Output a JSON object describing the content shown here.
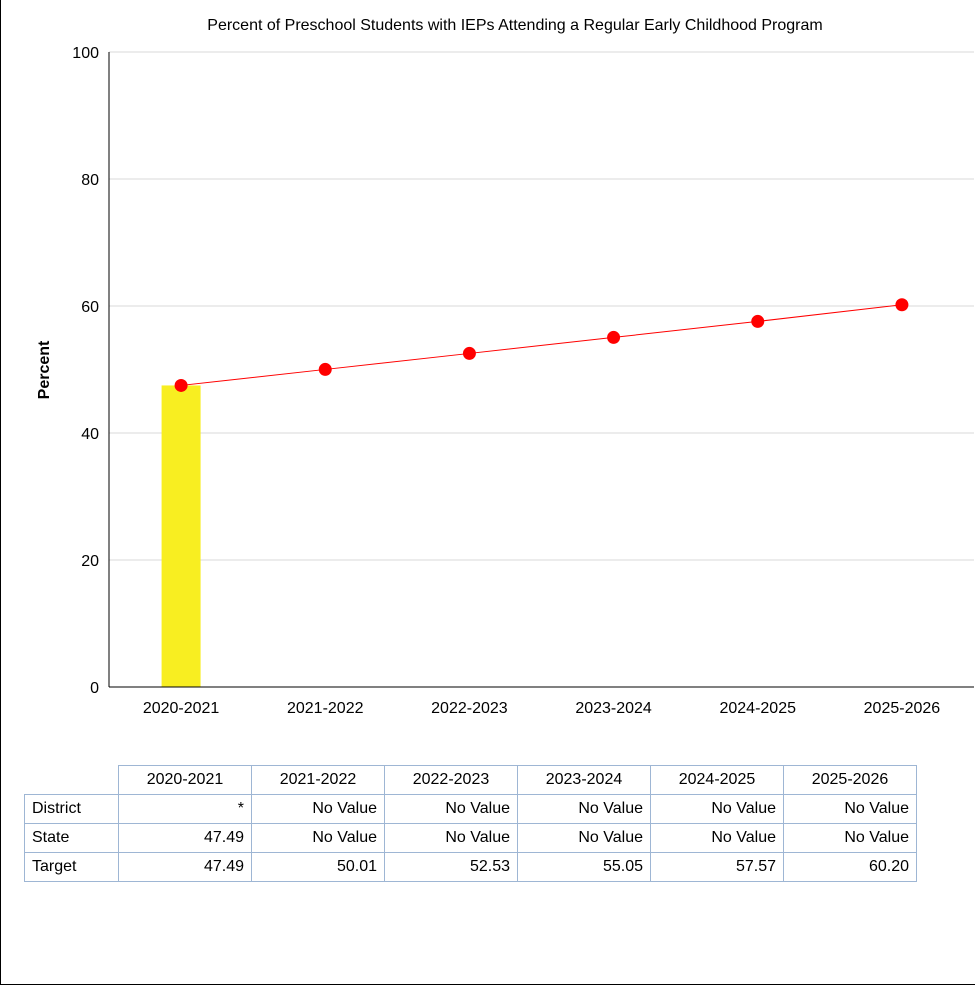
{
  "chart_data": {
    "type": "bar",
    "title": "Percent of Preschool Students with IEPs Attending a Regular Early Childhood Program",
    "ylabel": "Percent",
    "xlabel": "",
    "ylim": [
      0,
      100
    ],
    "yticks": [
      0,
      20,
      40,
      60,
      80,
      100
    ],
    "grid": true,
    "legend_position": "bottom",
    "categories": [
      "2020-2021",
      "2021-2022",
      "2022-2023",
      "2023-2024",
      "2024-2025",
      "2025-2026"
    ],
    "series": [
      {
        "name": "Target",
        "kind": "line",
        "color": "#ff0000",
        "values": [
          47.49,
          50.01,
          52.53,
          55.05,
          57.57,
          60.2
        ]
      },
      {
        "name": "District",
        "kind": "bar",
        "color": "#cdb96e",
        "values": [
          null,
          null,
          null,
          null,
          null,
          null
        ]
      },
      {
        "name": "State",
        "kind": "bar",
        "color": "#f8ee21",
        "values": [
          47.49,
          null,
          null,
          null,
          null,
          null
        ]
      }
    ]
  },
  "table": {
    "columns": [
      "2020-2021",
      "2021-2022",
      "2022-2023",
      "2023-2024",
      "2024-2025",
      "2025-2026"
    ],
    "rows": [
      {
        "label": "District",
        "cells": [
          "*",
          "No Value",
          "No Value",
          "No Value",
          "No Value",
          "No Value"
        ]
      },
      {
        "label": "State",
        "cells": [
          "47.49",
          "No Value",
          "No Value",
          "No Value",
          "No Value",
          "No Value"
        ]
      },
      {
        "label": "Target",
        "cells": [
          "47.49",
          "50.01",
          "52.53",
          "55.05",
          "57.57",
          "60.20"
        ]
      }
    ]
  }
}
